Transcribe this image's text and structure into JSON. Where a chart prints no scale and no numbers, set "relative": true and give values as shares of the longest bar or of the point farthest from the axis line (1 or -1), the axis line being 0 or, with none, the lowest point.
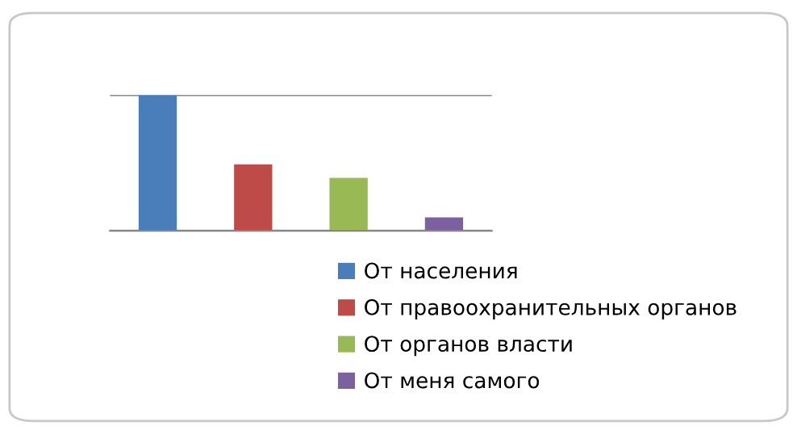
{
  "chart_data": {
    "type": "bar",
    "relative": true,
    "stacked": true,
    "categories": [
      null,
      null,
      null,
      null
    ],
    "grid": "y",
    "legend": "bottom",
    "series": [
      {
        "name": "От населения",
        "color": "#4a7ebb",
        "values": [
          1,
          null,
          null,
          null
        ]
      },
      {
        "name": "От правоохранительных органов",
        "color": "#be4b48",
        "values": [
          null,
          0.49,
          null,
          null
        ]
      },
      {
        "name": "От органов власти",
        "color": "#98b954",
        "values": [
          null,
          null,
          0.39,
          null
        ]
      },
      {
        "name": "От меня самого",
        "color": "#7d60a0",
        "values": [
          null,
          null,
          null,
          0.1
        ]
      }
    ]
  }
}
